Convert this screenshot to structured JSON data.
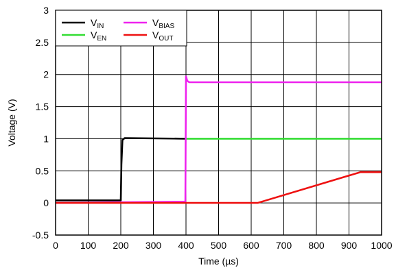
{
  "chart_data": {
    "type": "line",
    "title": "",
    "xlabel": "Time (µs)",
    "ylabel": "Voltage (V)",
    "xlim": [
      0,
      1000
    ],
    "ylim": [
      -0.5,
      3
    ],
    "xticks": [
      0,
      100,
      200,
      300,
      400,
      500,
      600,
      700,
      800,
      900,
      1000
    ],
    "yticks": [
      -0.5,
      0,
      0.5,
      1,
      1.5,
      2,
      2.5,
      3
    ],
    "xtick_labels": [
      "0",
      "100",
      "200",
      "300",
      "400",
      "500",
      "600",
      "700",
      "800",
      "900",
      "1000"
    ],
    "ytick_labels": [
      "-0.5",
      "0",
      "0.5",
      "1",
      "1.5",
      "2",
      "2.5",
      "3"
    ],
    "grid": true,
    "legend_position": "top-left",
    "series": [
      {
        "name": "V",
        "subscript": "IN",
        "color": "#000000",
        "points": [
          [
            0,
            0.04
          ],
          [
            200,
            0.04
          ],
          [
            202,
            0.6
          ],
          [
            205,
            0.98
          ],
          [
            212,
            1.01
          ],
          [
            400,
            1.0
          ]
        ]
      },
      {
        "name": "V",
        "subscript": "EN",
        "color": "#33dd33",
        "points": [
          [
            400,
            1.0
          ],
          [
            1000,
            1.0
          ]
        ]
      },
      {
        "name": "V",
        "subscript": "BIAS",
        "color": "#ee22ee",
        "points": [
          [
            0,
            0.0
          ],
          [
            398,
            0.02
          ],
          [
            400,
            1.97
          ],
          [
            404,
            1.9
          ],
          [
            410,
            1.88
          ],
          [
            1000,
            1.88
          ]
        ]
      },
      {
        "name": "V",
        "subscript": "OUT",
        "color": "#ee1111",
        "points": [
          [
            0,
            0.0
          ],
          [
            620,
            0.0
          ],
          [
            935,
            0.48
          ],
          [
            1000,
            0.48
          ]
        ]
      }
    ]
  }
}
